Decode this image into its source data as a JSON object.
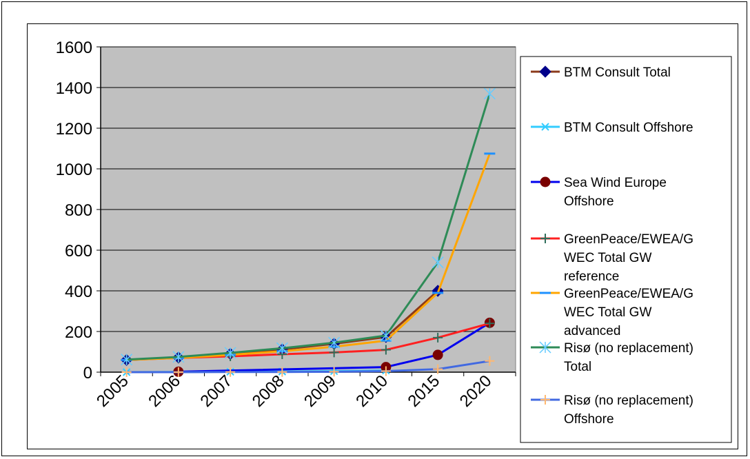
{
  "chart_data": {
    "type": "line",
    "categories": [
      "2005",
      "2006",
      "2007",
      "2008",
      "2009",
      "2010",
      "2015",
      "2020"
    ],
    "ylim": [
      0,
      1600
    ],
    "yticks": [
      0,
      200,
      400,
      600,
      800,
      1000,
      1200,
      1400,
      1600
    ],
    "grid": true,
    "legend_position": "right",
    "series": [
      {
        "name": "BTM Consult Total",
        "color": "#8B3A1A",
        "marker": "diamond",
        "marker_color": "#00008B",
        "points": [
          [
            0,
            60
          ],
          [
            1,
            72
          ],
          [
            2,
            90
          ],
          [
            3,
            112
          ],
          [
            4,
            140
          ],
          [
            5,
            173
          ],
          [
            6,
            400
          ],
          [
            7,
            null
          ]
        ]
      },
      {
        "name": "BTM Consult Offshore",
        "color": "#33CCFF",
        "marker": "x",
        "marker_color": "#33CCFF",
        "points": [
          [
            0,
            0
          ],
          [
            1,
            1
          ],
          [
            2,
            2
          ],
          [
            3,
            3
          ],
          [
            4,
            5
          ],
          [
            5,
            8
          ],
          [
            6,
            null
          ],
          [
            7,
            null
          ]
        ]
      },
      {
        "name": "Sea Wind Europe Offshore",
        "color": "#0000EE",
        "marker": "circle",
        "marker_color": "#7A0000",
        "points": [
          [
            1,
            2
          ],
          [
            5,
            25
          ],
          [
            6,
            85
          ],
          [
            7,
            243
          ]
        ]
      },
      {
        "name": "GreenPeace/EWEA/GWEC Total GW reference",
        "color": "#FF2020",
        "marker": "plus",
        "marker_color": "#2E6E5A",
        "points": [
          [
            0,
            60
          ],
          [
            1,
            70
          ],
          [
            2,
            78
          ],
          [
            3,
            88
          ],
          [
            4,
            97
          ],
          [
            5,
            110
          ],
          [
            6,
            170
          ],
          [
            7,
            240
          ]
        ]
      },
      {
        "name": "GreenPeace/EWEA/GWEC Total GW advanced",
        "color": "#FFA500",
        "marker": "dash",
        "marker_color": "#1E90FF",
        "points": [
          [
            0,
            60
          ],
          [
            1,
            70
          ],
          [
            2,
            85
          ],
          [
            3,
            103
          ],
          [
            4,
            125
          ],
          [
            5,
            155
          ],
          [
            6,
            390
          ],
          [
            7,
            1075
          ]
        ]
      },
      {
        "name": "Risø (no replacement) Total",
        "color": "#2E8B57",
        "marker": "star",
        "marker_color": "#66CCFF",
        "points": [
          [
            0,
            62
          ],
          [
            1,
            75
          ],
          [
            2,
            95
          ],
          [
            3,
            118
          ],
          [
            4,
            145
          ],
          [
            5,
            180
          ],
          [
            6,
            540
          ],
          [
            7,
            1370
          ]
        ]
      },
      {
        "name": "Risø (no replacement) Offshore",
        "color": "#4169E1",
        "marker": "plus",
        "marker_color": "#FFB870",
        "points": [
          [
            0,
            0
          ],
          [
            1,
            0
          ],
          [
            2,
            1
          ],
          [
            3,
            1
          ],
          [
            4,
            2
          ],
          [
            5,
            5
          ],
          [
            6,
            15
          ],
          [
            7,
            55
          ]
        ]
      }
    ]
  }
}
